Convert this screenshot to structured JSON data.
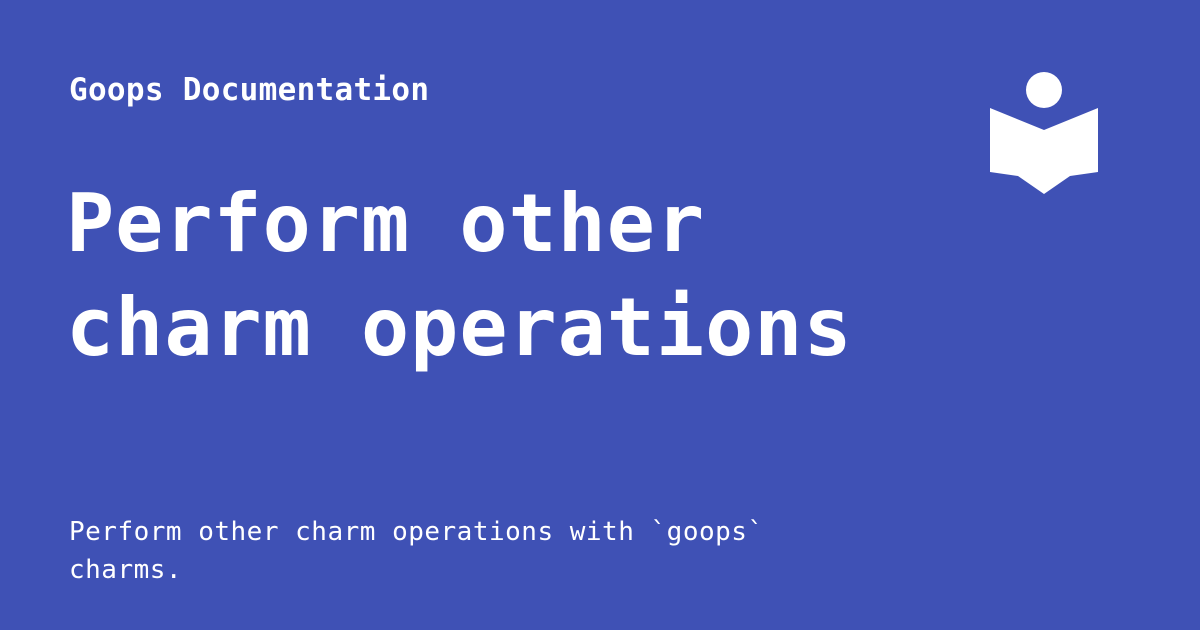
{
  "header": {
    "site_name": "Goops Documentation",
    "logo_icon": "book-reader-icon"
  },
  "main": {
    "title": "Perform other charm operations",
    "description": "Perform other charm operations with `goops` charms."
  },
  "colors": {
    "background": "#3f51b5",
    "foreground": "#ffffff"
  }
}
